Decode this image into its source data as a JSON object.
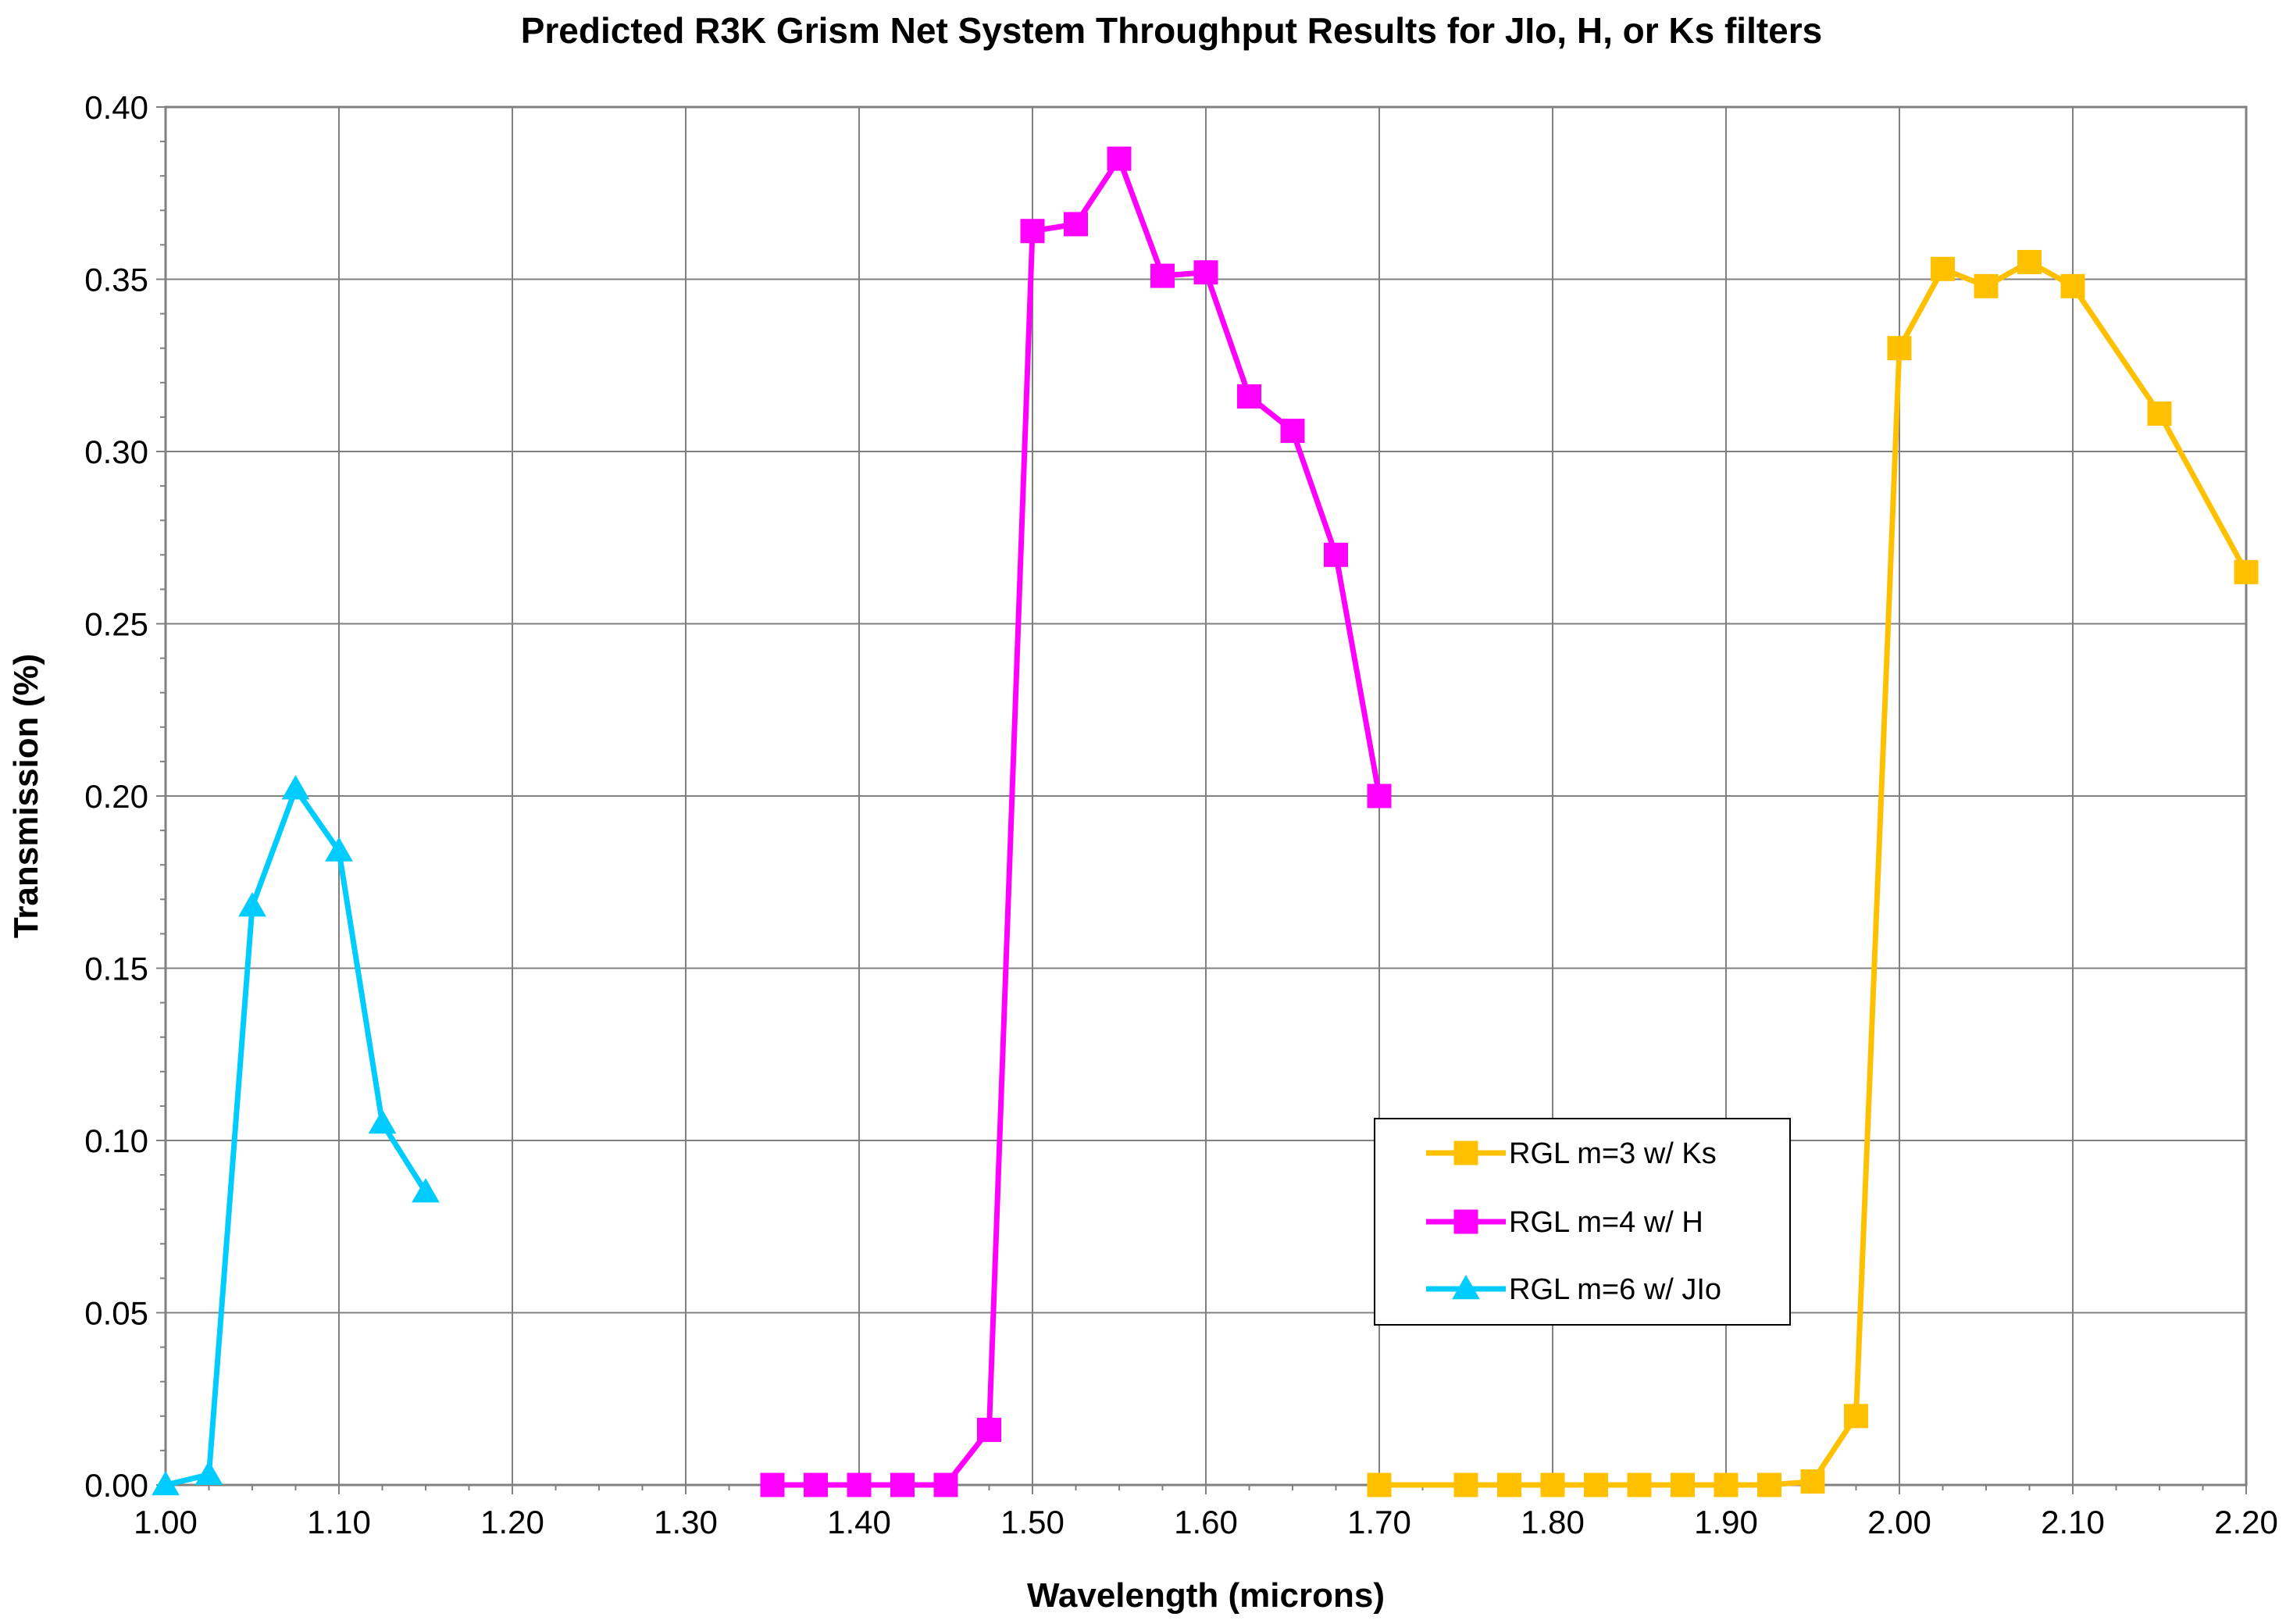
{
  "chart_data": {
    "type": "line",
    "title": "Predicted R3K Grism Net System Throughput Results for JIo, H, or Ks filters",
    "xlabel": "Wavelength (microns)",
    "ylabel": "Transmission (%)",
    "xlim": [
      1.0,
      2.2
    ],
    "ylim": [
      0.0,
      0.4
    ],
    "x_ticks": [
      "1.00",
      "1.10",
      "1.20",
      "1.30",
      "1.40",
      "1.50",
      "1.60",
      "1.70",
      "1.80",
      "1.90",
      "2.00",
      "2.10",
      "2.20"
    ],
    "y_ticks": [
      "0.00",
      "0.05",
      "0.10",
      "0.15",
      "0.20",
      "0.25",
      "0.30",
      "0.35",
      "0.40"
    ],
    "grid": true,
    "legend_position": "lower-right",
    "series": [
      {
        "name": "RGL m=3 w/ Ks",
        "color": "#FFC000",
        "marker": "square",
        "x": [
          1.7,
          1.75,
          1.775,
          1.8,
          1.825,
          1.85,
          1.875,
          1.9,
          1.925,
          1.95,
          1.975,
          2.0,
          2.025,
          2.05,
          2.075,
          2.1,
          2.15,
          2.2
        ],
        "y": [
          0.0,
          0.0,
          0.0,
          0.0,
          0.0,
          0.0,
          0.0,
          0.0,
          0.0,
          0.001,
          0.02,
          0.33,
          0.353,
          0.348,
          0.355,
          0.348,
          0.311,
          0.265
        ]
      },
      {
        "name": "RGL m=4 w/ H",
        "color": "#FF00FF",
        "marker": "square",
        "x": [
          1.35,
          1.375,
          1.4,
          1.425,
          1.45,
          1.475,
          1.5,
          1.525,
          1.55,
          1.575,
          1.6,
          1.625,
          1.65,
          1.675,
          1.7
        ],
        "y": [
          0.0,
          0.0,
          0.0,
          0.0,
          0.0,
          0.016,
          0.364,
          0.366,
          0.385,
          0.351,
          0.352,
          0.316,
          0.306,
          0.27,
          0.2
        ]
      },
      {
        "name": "RGL m=6 w/ JIo",
        "color": "#00CCFF",
        "marker": "triangle",
        "x": [
          1.0,
          1.025,
          1.05,
          1.075,
          1.1,
          1.125,
          1.15
        ],
        "y": [
          0.0,
          0.003,
          0.168,
          0.202,
          0.184,
          0.105,
          0.085
        ]
      }
    ]
  }
}
